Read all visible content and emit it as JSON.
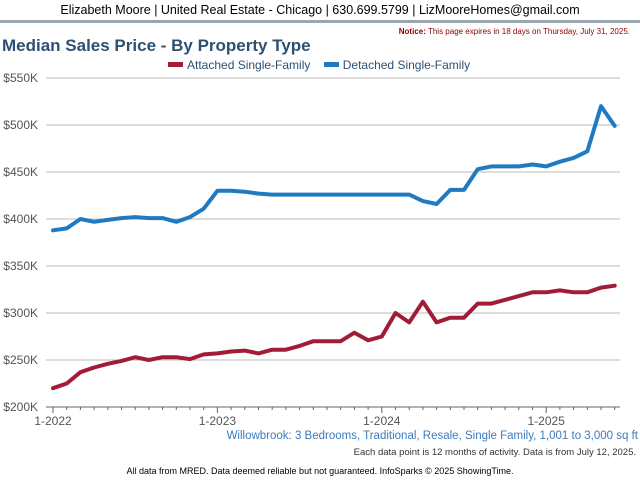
{
  "header": {
    "agent_line": "Elizabeth Moore | United Real Estate - Chicago | 630.699.5799 | LizMooreHomes@gmail.com",
    "notice_label": "Notice:",
    "notice_text": "This page expires in 18 days on Thursday, July 31, 2025."
  },
  "colors": {
    "attached": "#a31c37",
    "detached": "#1f7ac1",
    "title": "#2d5073",
    "grid": "#bbbbbb"
  },
  "chart_data": {
    "type": "line",
    "title": "Median Sales Price - By Property Type",
    "xlabel": "",
    "ylabel": "",
    "y_ticks": [
      "$200K",
      "$250K",
      "$300K",
      "$350K",
      "$400K",
      "$450K",
      "$500K",
      "$550K"
    ],
    "ylim": [
      200000,
      550000
    ],
    "x_ticks": [
      "1-2022",
      "1-2023",
      "1-2024",
      "1-2025"
    ],
    "x_start": "1-2022",
    "grid": true,
    "legend_position": "top",
    "series": [
      {
        "name": "Attached Single-Family",
        "values": [
          220000,
          225000,
          237000,
          242000,
          246000,
          249000,
          253000,
          250000,
          253000,
          253000,
          251000,
          256000,
          257000,
          259000,
          260000,
          257000,
          261000,
          261000,
          265000,
          270000,
          270000,
          270000,
          279000,
          271000,
          275000,
          300000,
          290000,
          312000,
          290000,
          295000,
          295000,
          310000,
          310000,
          314000,
          318000,
          322000,
          322000,
          324000,
          322000,
          322000,
          327000,
          329000
        ]
      },
      {
        "name": "Detached Single-Family",
        "values": [
          388000,
          390000,
          400000,
          397000,
          399000,
          401000,
          402000,
          401000,
          401000,
          397000,
          402000,
          411000,
          430000,
          430000,
          429000,
          427000,
          426000,
          426000,
          426000,
          426000,
          426000,
          426000,
          426000,
          426000,
          426000,
          426000,
          426000,
          419000,
          416000,
          431000,
          431000,
          453000,
          456000,
          456000,
          456000,
          458000,
          456000,
          461000,
          465000,
          472000,
          520000,
          499000
        ]
      }
    ]
  },
  "footer": {
    "subtitle": "Willowbrook: 3 Bedrooms, Traditional, Resale, Single Family, 1,001 to 3,000 sq ft",
    "data_note": "Each data point is 12 months of activity. Data is from July 12, 2025.",
    "source": "All data from MRED. Data deemed reliable but not guaranteed. InfoSparks © 2025 ShowingTime."
  }
}
